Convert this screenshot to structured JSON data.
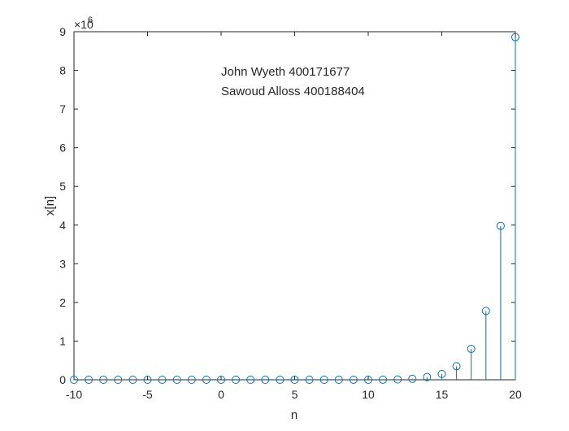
{
  "chart_data": {
    "type": "stem",
    "title": "",
    "xlabel": "n",
    "ylabel": "x[n]",
    "xlim": [
      -10,
      20
    ],
    "ylim": [
      0,
      9000000
    ],
    "xticks": [
      -10,
      -5,
      0,
      5,
      10,
      15,
      20
    ],
    "yticks": [
      0,
      1,
      2,
      3,
      4,
      5,
      6,
      7,
      8,
      9
    ],
    "y_exponent_label": "×10",
    "y_exponent_power": "6",
    "color": "#0072BD",
    "annotations": [
      "John Wyeth 400171677",
      "Sawoud Alloss 400188404"
    ],
    "x": [
      -10,
      -9,
      -8,
      -7,
      -6,
      -5,
      -4,
      -3,
      -2,
      -1,
      0,
      1,
      2,
      3,
      4,
      5,
      6,
      7,
      8,
      9,
      10,
      11,
      12,
      13,
      14,
      15,
      16,
      17,
      18,
      19,
      20
    ],
    "values": [
      0,
      0,
      0,
      0,
      0,
      0,
      0,
      0,
      0,
      0,
      0,
      0,
      0,
      0,
      0,
      0,
      0,
      0,
      0,
      0,
      1,
      2500,
      7500,
      25000,
      70000,
      150000,
      350000,
      800000,
      1780000,
      3980000,
      8860000
    ]
  }
}
